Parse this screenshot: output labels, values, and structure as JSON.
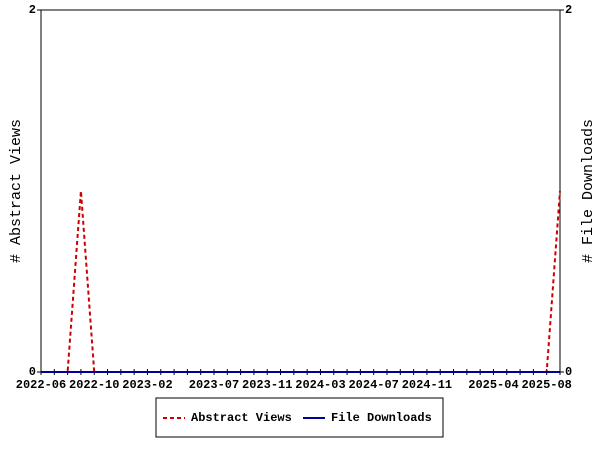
{
  "chart_data": {
    "type": "line",
    "categories": [
      "2022-06",
      null,
      null,
      null,
      "2022-10",
      null,
      null,
      null,
      "2023-02",
      null,
      null,
      null,
      null,
      "2023-07",
      null,
      null,
      null,
      "2023-11",
      null,
      null,
      null,
      "2024-03",
      null,
      null,
      null,
      "2024-07",
      null,
      null,
      null,
      "2024-11",
      null,
      null,
      null,
      null,
      "2025-04",
      null,
      null,
      null,
      "2025-08",
      null
    ],
    "series": [
      {
        "name": "Abstract Views",
        "color": "#cc0000",
        "dashed": true,
        "axis": "y",
        "values": [
          0,
          0,
          0,
          1,
          0,
          0,
          0,
          0,
          0,
          0,
          0,
          0,
          0,
          0,
          0,
          0,
          0,
          0,
          0,
          0,
          0,
          0,
          0,
          0,
          0,
          0,
          0,
          0,
          0,
          0,
          0,
          0,
          0,
          0,
          0,
          0,
          0,
          0,
          0,
          1
        ]
      },
      {
        "name": "File Downloads",
        "color": "#000099",
        "dashed": false,
        "axis": "y2",
        "values": [
          0,
          0,
          0,
          0,
          0,
          0,
          0,
          0,
          0,
          0,
          0,
          0,
          0,
          0,
          0,
          0,
          0,
          0,
          0,
          0,
          0,
          0,
          0,
          0,
          0,
          0,
          0,
          0,
          0,
          0,
          0,
          0,
          0,
          0,
          0,
          0,
          0,
          0,
          0,
          0
        ]
      }
    ],
    "ylabel": "# Abstract Views",
    "y2label": "# File Downloads",
    "ylim": [
      0,
      2
    ],
    "yticks": [
      0,
      2
    ],
    "y2lim": [
      0,
      2
    ],
    "y2ticks": [
      0,
      2
    ],
    "grid": false,
    "legend": "bottom"
  }
}
